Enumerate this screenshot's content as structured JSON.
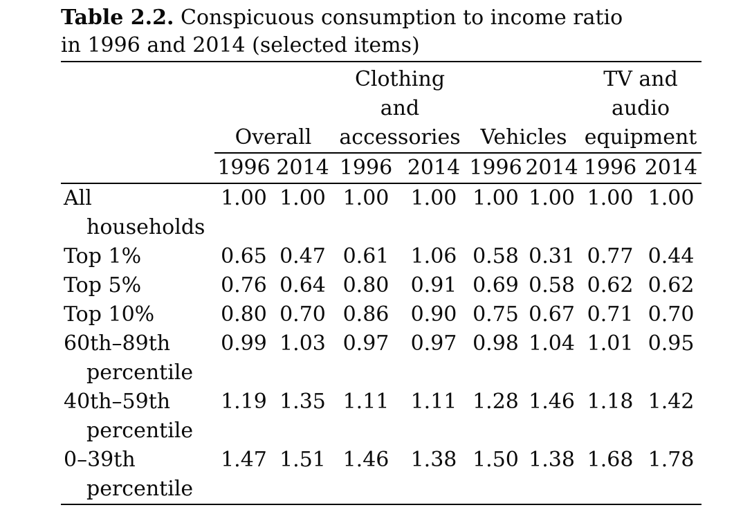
{
  "caption": {
    "label": "Table 2.2.",
    "text": "Conspicuous consumption to income ratio\nin 1996 and 2014 (selected items)"
  },
  "table": {
    "col_groups": [
      {
        "label": "Overall"
      },
      {
        "label": "Clothing\nand\naccessories"
      },
      {
        "label": "Vehicles"
      },
      {
        "label": "TV and\naudio\nequipment"
      }
    ],
    "years": [
      "1996",
      "2014",
      "1996",
      "2014",
      "1996",
      "2014",
      "1996",
      "2014"
    ],
    "rows": [
      {
        "label": "All households",
        "values": [
          "1.00",
          "1.00",
          "1.00",
          "1.00",
          "1.00",
          "1.00",
          "1.00",
          "1.00"
        ]
      },
      {
        "label": "Top 1%",
        "values": [
          "0.65",
          "0.47",
          "0.61",
          "1.06",
          "0.58",
          "0.31",
          "0.77",
          "0.44"
        ]
      },
      {
        "label": "Top 5%",
        "values": [
          "0.76",
          "0.64",
          "0.80",
          "0.91",
          "0.69",
          "0.58",
          "0.62",
          "0.62"
        ]
      },
      {
        "label": "Top 10%",
        "values": [
          "0.80",
          "0.70",
          "0.86",
          "0.90",
          "0.75",
          "0.67",
          "0.71",
          "0.70"
        ]
      },
      {
        "label": "60th–89th percentile",
        "values": [
          "0.99",
          "1.03",
          "0.97",
          "0.97",
          "0.98",
          "1.04",
          "1.01",
          "0.95"
        ]
      },
      {
        "label": "40th–59th percentile",
        "values": [
          "1.19",
          "1.35",
          "1.11",
          "1.11",
          "1.28",
          "1.46",
          "1.18",
          "1.42"
        ]
      },
      {
        "label": "0–39th percentile",
        "values": [
          "1.47",
          "1.51",
          "1.46",
          "1.38",
          "1.50",
          "1.38",
          "1.68",
          "1.78"
        ]
      }
    ]
  },
  "colors": {
    "text": "#0a0a0a",
    "background": "#ffffff",
    "rule": "#000000"
  }
}
